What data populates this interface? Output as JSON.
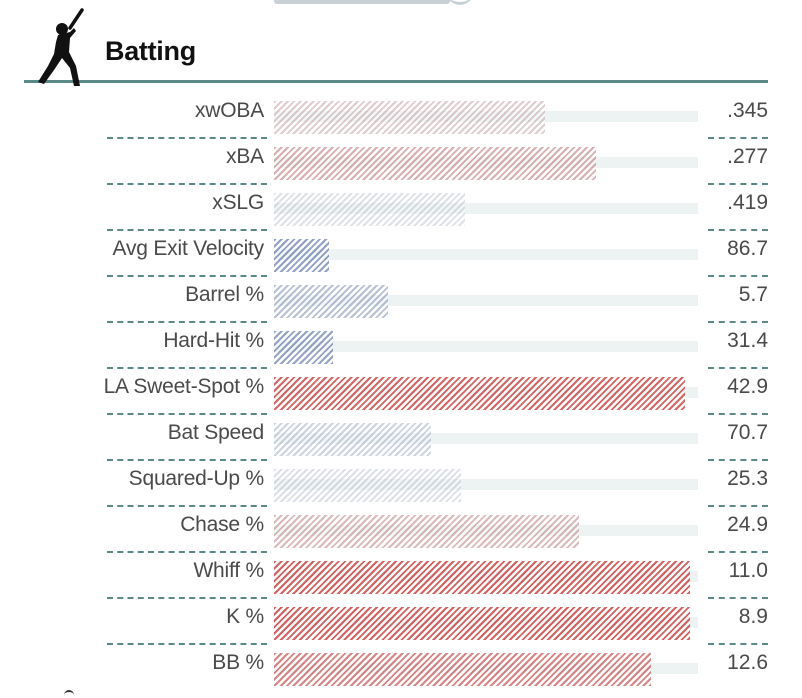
{
  "section": {
    "title": "Batting",
    "icon": "batter-icon"
  },
  "colors": {
    "rule": "#5a8a88",
    "track": "#edf3f3",
    "percentile_scale": [
      "#3d5a9e",
      "#b8bcc4",
      "#c8312f"
    ]
  },
  "chart_data": {
    "type": "bar",
    "orientation": "horizontal",
    "xlim": [
      0,
      100
    ],
    "categories": [
      "xwOBA",
      "xBA",
      "xSLG",
      "Avg Exit Velocity",
      "Barrel %",
      "Hard-Hit %",
      "LA Sweet-Spot %",
      "Bat Speed",
      "Squared-Up %",
      "Chase %",
      "Whiff %",
      "K %",
      "BB %"
    ],
    "percentiles": [
      64,
      76,
      45,
      13,
      27,
      14,
      97,
      37,
      44,
      72,
      98,
      98,
      89
    ],
    "values": [
      ".345",
      ".277",
      ".419",
      "86.7",
      "5.7",
      "31.4",
      "42.9",
      "70.7",
      "25.3",
      "24.9",
      "11.0",
      "8.9",
      "12.6"
    ]
  }
}
